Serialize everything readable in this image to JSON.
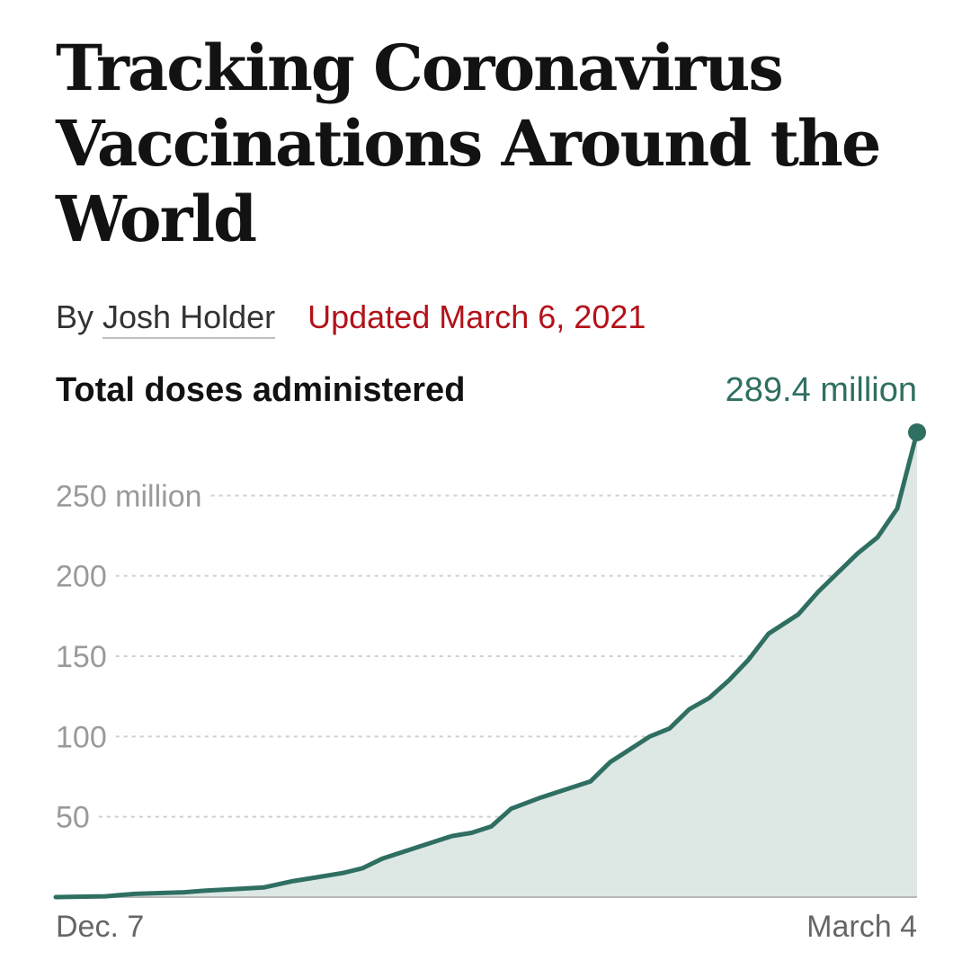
{
  "headline": "Tracking Coronavirus Vaccinations Around the World",
  "byline": {
    "prefix": "By",
    "author": "Josh Holder",
    "updated": "Updated March 6, 2021"
  },
  "colors": {
    "line": "#2f6f62",
    "area": "#dde7e4",
    "grid": "#cfcfcf",
    "updated": "#b3121a"
  },
  "chart_data": {
    "type": "area",
    "title": "Total doses administered",
    "latest_label": "289.4 million",
    "ylim": [
      0,
      300
    ],
    "yticks": [
      {
        "value": 50,
        "label": "50"
      },
      {
        "value": 100,
        "label": "100"
      },
      {
        "value": 150,
        "label": "150"
      },
      {
        "value": 200,
        "label": "200"
      },
      {
        "value": 250,
        "label": "250 million"
      }
    ],
    "x_labels": [
      {
        "date": "2020-12-07",
        "label": "Dec. 7"
      },
      {
        "date": "2021-03-04",
        "label": "March 4"
      }
    ],
    "grid": true,
    "series": [
      {
        "x": [
          "2020-12-07",
          "2020-12-12",
          "2020-12-15",
          "2020-12-20",
          "2020-12-22",
          "2020-12-25",
          "2020-12-28",
          "2020-12-31",
          "2021-01-02",
          "2021-01-05",
          "2021-01-07",
          "2021-01-09",
          "2021-01-11",
          "2021-01-14",
          "2021-01-16",
          "2021-01-18",
          "2021-01-20",
          "2021-01-22",
          "2021-01-25",
          "2021-01-28",
          "2021-01-30",
          "2021-02-01",
          "2021-02-03",
          "2021-02-05",
          "2021-02-07",
          "2021-02-09",
          "2021-02-11",
          "2021-02-13",
          "2021-02-15",
          "2021-02-17",
          "2021-02-20",
          "2021-02-22",
          "2021-02-24",
          "2021-02-26",
          "2021-02-28",
          "2021-03-02",
          "2021-03-04"
        ],
        "y": [
          0,
          0.5,
          2,
          3,
          4,
          5,
          6,
          10,
          12,
          15,
          18,
          24,
          28,
          34,
          38,
          40,
          44,
          55,
          62,
          68,
          72,
          84,
          92,
          100,
          105,
          117,
          124,
          135,
          148,
          164,
          176,
          190,
          202,
          214,
          224,
          242,
          289.4
        ]
      }
    ]
  }
}
